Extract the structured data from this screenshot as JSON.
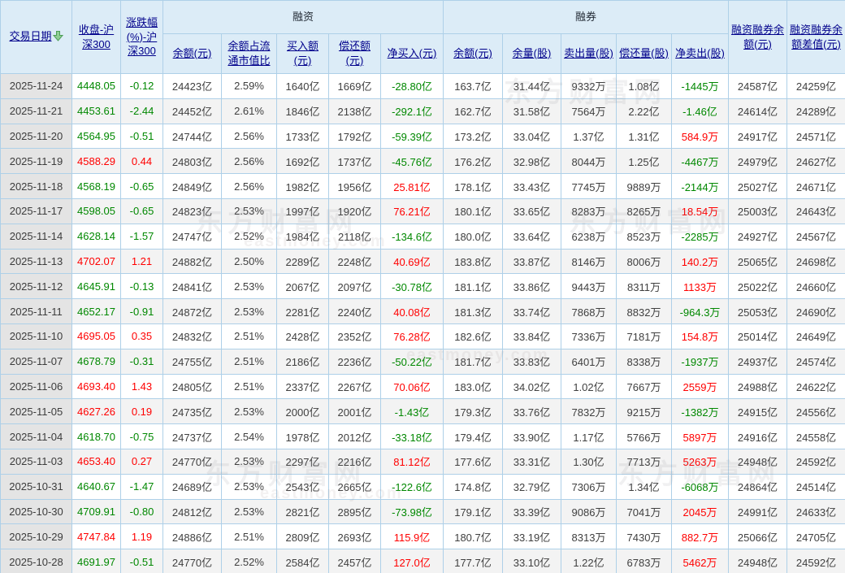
{
  "watermark": {
    "site_name": "东方财富网",
    "site_domain": "eastmoney.com",
    "logo_glyph": ""
  },
  "colors": {
    "up_red": "#ff0000",
    "down_green": "#008800",
    "header_link_navy": "#00008b",
    "header_bg": "#dcecf7",
    "grid_border": "#aed0e8",
    "date_column_bg": "#e4e4e4",
    "alt_row_bg": "#f3f3f3",
    "sort_arrow_green": "#8fce94"
  },
  "header": {
    "date_label": "交易日期",
    "date_sort_icon": "green-down-arrow",
    "close_label": "收盘-沪深300",
    "change_label": "涨跌幅(%)-沪深300",
    "financing_group": "融资",
    "financing_cols": [
      "余额(元)",
      "余额占流通市值比",
      "买入额(元)",
      "偿还额(元)",
      "净买入(元)"
    ],
    "short_group": "融券",
    "short_cols": [
      "余额(元)",
      "余量(股)",
      "卖出量(股)",
      "偿还量(股)",
      "净卖出(股)"
    ],
    "total_balance_label": "融资融券余额(元)",
    "balance_diff_label": "融资融券余额差值(元)"
  },
  "column_keys": [
    "trade-date",
    "close-csi300",
    "change-pct-csi300",
    "financing-balance",
    "financing-balance-ratio",
    "financing-buy-amount",
    "financing-repay-amount",
    "financing-net-buy",
    "short-balance",
    "short-quantity",
    "short-sell-quantity",
    "short-repay-quantity",
    "short-net-sell",
    "margin-total-balance",
    "margin-balance-diff"
  ],
  "rows": [
    [
      "2025-11-24",
      [
        "4448.05",
        "g"
      ],
      [
        "-0.12",
        "g"
      ],
      "24423亿",
      "2.59%",
      "1640亿",
      "1669亿",
      [
        "-28.80亿",
        "g"
      ],
      "163.7亿",
      "31.44亿",
      "9332万",
      "1.08亿",
      [
        "-1445万",
        "g"
      ],
      "24587亿",
      "24259亿"
    ],
    [
      "2025-11-21",
      [
        "4453.61",
        "g"
      ],
      [
        "-2.44",
        "g"
      ],
      "24452亿",
      "2.61%",
      "1846亿",
      "2138亿",
      [
        "-292.1亿",
        "g"
      ],
      "162.7亿",
      "31.58亿",
      "7564万",
      "2.22亿",
      [
        "-1.46亿",
        "g"
      ],
      "24614亿",
      "24289亿"
    ],
    [
      "2025-11-20",
      [
        "4564.95",
        "g"
      ],
      [
        "-0.51",
        "g"
      ],
      "24744亿",
      "2.56%",
      "1733亿",
      "1792亿",
      [
        "-59.39亿",
        "g"
      ],
      "173.2亿",
      "33.04亿",
      "1.37亿",
      "1.31亿",
      [
        "584.9万",
        "r"
      ],
      "24917亿",
      "24571亿"
    ],
    [
      "2025-11-19",
      [
        "4588.29",
        "r"
      ],
      [
        "0.44",
        "r"
      ],
      "24803亿",
      "2.56%",
      "1692亿",
      "1737亿",
      [
        "-45.76亿",
        "g"
      ],
      "176.2亿",
      "32.98亿",
      "8044万",
      "1.25亿",
      [
        "-4467万",
        "g"
      ],
      "24979亿",
      "24627亿"
    ],
    [
      "2025-11-18",
      [
        "4568.19",
        "g"
      ],
      [
        "-0.65",
        "g"
      ],
      "24849亿",
      "2.56%",
      "1982亿",
      "1956亿",
      [
        "25.81亿",
        "r"
      ],
      "178.1亿",
      "33.43亿",
      "7745万",
      "9889万",
      [
        "-2144万",
        "g"
      ],
      "25027亿",
      "24671亿"
    ],
    [
      "2025-11-17",
      [
        "4598.05",
        "g"
      ],
      [
        "-0.65",
        "g"
      ],
      "24823亿",
      "2.53%",
      "1997亿",
      "1920亿",
      [
        "76.21亿",
        "r"
      ],
      "180.1亿",
      "33.65亿",
      "8283万",
      "8265万",
      [
        "18.54万",
        "r"
      ],
      "25003亿",
      "24643亿"
    ],
    [
      "2025-11-14",
      [
        "4628.14",
        "g"
      ],
      [
        "-1.57",
        "g"
      ],
      "24747亿",
      "2.52%",
      "1984亿",
      "2118亿",
      [
        "-134.6亿",
        "g"
      ],
      "180.0亿",
      "33.64亿",
      "6238万",
      "8523万",
      [
        "-2285万",
        "g"
      ],
      "24927亿",
      "24567亿"
    ],
    [
      "2025-11-13",
      [
        "4702.07",
        "r"
      ],
      [
        "1.21",
        "r"
      ],
      "24882亿",
      "2.50%",
      "2289亿",
      "2248亿",
      [
        "40.69亿",
        "r"
      ],
      "183.8亿",
      "33.87亿",
      "8146万",
      "8006万",
      [
        "140.2万",
        "r"
      ],
      "25065亿",
      "24698亿"
    ],
    [
      "2025-11-12",
      [
        "4645.91",
        "g"
      ],
      [
        "-0.13",
        "g"
      ],
      "24841亿",
      "2.53%",
      "2067亿",
      "2097亿",
      [
        "-30.78亿",
        "g"
      ],
      "181.1亿",
      "33.86亿",
      "9443万",
      "8311万",
      [
        "1133万",
        "r"
      ],
      "25022亿",
      "24660亿"
    ],
    [
      "2025-11-11",
      [
        "4652.17",
        "g"
      ],
      [
        "-0.91",
        "g"
      ],
      "24872亿",
      "2.53%",
      "2281亿",
      "2240亿",
      [
        "40.08亿",
        "r"
      ],
      "181.3亿",
      "33.74亿",
      "7868万",
      "8832万",
      [
        "-964.3万",
        "g"
      ],
      "25053亿",
      "24690亿"
    ],
    [
      "2025-11-10",
      [
        "4695.05",
        "r"
      ],
      [
        "0.35",
        "r"
      ],
      "24832亿",
      "2.51%",
      "2428亿",
      "2352亿",
      [
        "76.28亿",
        "r"
      ],
      "182.6亿",
      "33.84亿",
      "7336万",
      "7181万",
      [
        "154.8万",
        "r"
      ],
      "25014亿",
      "24649亿"
    ],
    [
      "2025-11-07",
      [
        "4678.79",
        "g"
      ],
      [
        "-0.31",
        "g"
      ],
      "24755亿",
      "2.51%",
      "2186亿",
      "2236亿",
      [
        "-50.22亿",
        "g"
      ],
      "181.7亿",
      "33.83亿",
      "6401万",
      "8338万",
      [
        "-1937万",
        "g"
      ],
      "24937亿",
      "24574亿"
    ],
    [
      "2025-11-06",
      [
        "4693.40",
        "r"
      ],
      [
        "1.43",
        "r"
      ],
      "24805亿",
      "2.51%",
      "2337亿",
      "2267亿",
      [
        "70.06亿",
        "r"
      ],
      "183.0亿",
      "34.02亿",
      "1.02亿",
      "7667万",
      [
        "2559万",
        "r"
      ],
      "24988亿",
      "24622亿"
    ],
    [
      "2025-11-05",
      [
        "4627.26",
        "r"
      ],
      [
        "0.19",
        "r"
      ],
      "24735亿",
      "2.53%",
      "2000亿",
      "2001亿",
      [
        "-1.43亿",
        "g"
      ],
      "179.3亿",
      "33.76亿",
      "7832万",
      "9215万",
      [
        "-1382万",
        "g"
      ],
      "24915亿",
      "24556亿"
    ],
    [
      "2025-11-04",
      [
        "4618.70",
        "g"
      ],
      [
        "-0.75",
        "g"
      ],
      "24737亿",
      "2.54%",
      "1978亿",
      "2012亿",
      [
        "-33.18亿",
        "g"
      ],
      "179.4亿",
      "33.90亿",
      "1.17亿",
      "5766万",
      [
        "5897万",
        "r"
      ],
      "24916亿",
      "24558亿"
    ],
    [
      "2025-11-03",
      [
        "4653.40",
        "r"
      ],
      [
        "0.27",
        "r"
      ],
      "24770亿",
      "2.53%",
      "2297亿",
      "2216亿",
      [
        "81.12亿",
        "r"
      ],
      "177.6亿",
      "33.31亿",
      "1.30亿",
      "7713万",
      [
        "5263万",
        "r"
      ],
      "24948亿",
      "24592亿"
    ],
    [
      "2025-10-31",
      [
        "4640.67",
        "g"
      ],
      [
        "-1.47",
        "g"
      ],
      "24689亿",
      "2.53%",
      "2543亿",
      "2665亿",
      [
        "-122.6亿",
        "g"
      ],
      "174.8亿",
      "32.79亿",
      "7306万",
      "1.34亿",
      [
        "-6068万",
        "g"
      ],
      "24864亿",
      "24514亿"
    ],
    [
      "2025-10-30",
      [
        "4709.91",
        "g"
      ],
      [
        "-0.80",
        "g"
      ],
      "24812亿",
      "2.53%",
      "2821亿",
      "2895亿",
      [
        "-73.98亿",
        "g"
      ],
      "179.1亿",
      "33.39亿",
      "9086万",
      "7041万",
      [
        "2045万",
        "r"
      ],
      "24991亿",
      "24633亿"
    ],
    [
      "2025-10-29",
      [
        "4747.84",
        "r"
      ],
      [
        "1.19",
        "r"
      ],
      "24886亿",
      "2.51%",
      "2809亿",
      "2693亿",
      [
        "115.9亿",
        "r"
      ],
      "180.7亿",
      "33.19亿",
      "8313万",
      "7430万",
      [
        "882.7万",
        "r"
      ],
      "25066亿",
      "24705亿"
    ],
    [
      "2025-10-28",
      [
        "4691.97",
        "g"
      ],
      [
        "-0.51",
        "g"
      ],
      "24770亿",
      "2.52%",
      "2584亿",
      "2457亿",
      [
        "127.0亿",
        "r"
      ],
      "177.7亿",
      "33.10亿",
      "1.22亿",
      "6783万",
      [
        "5462万",
        "r"
      ],
      "24948亿",
      "24592亿"
    ]
  ]
}
